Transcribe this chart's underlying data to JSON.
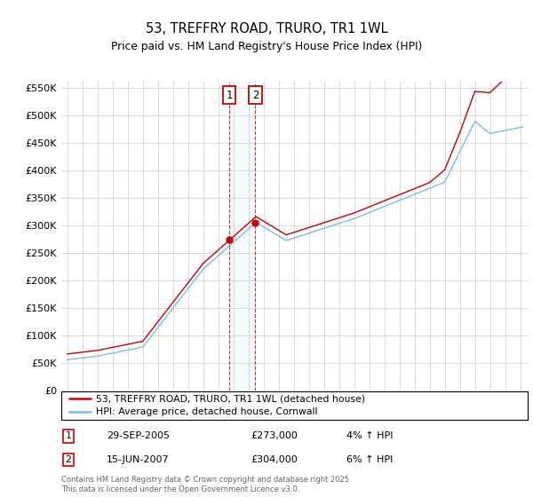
{
  "title": "53, TREFFRY ROAD, TRURO, TR1 1WL",
  "subtitle": "Price paid vs. HM Land Registry's House Price Index (HPI)",
  "legend_line1": "53, TREFFRY ROAD, TRURO, TR1 1WL (detached house)",
  "legend_line2": "HPI: Average price, detached house, Cornwall",
  "transaction1_date": "29-SEP-2005",
  "transaction1_price": "£273,000",
  "transaction1_hpi": "4% ↑ HPI",
  "transaction1_year": 2005.75,
  "transaction1_value": 273000,
  "transaction2_date": "15-JUN-2007",
  "transaction2_price": "£304,000",
  "transaction2_hpi": "6% ↑ HPI",
  "transaction2_year": 2007.46,
  "transaction2_value": 304000,
  "footer": "Contains HM Land Registry data © Crown copyright and database right 2025.\nThis data is licensed under the Open Government Licence v3.0.",
  "hpi_color": "#7abde8",
  "price_color": "#cc0000",
  "marker_box_color": "#cc0000",
  "background_color": "#ffffff",
  "grid_color": "#cccccc",
  "ylim": [
    0,
    560000
  ],
  "yticks": [
    0,
    50000,
    100000,
    150000,
    200000,
    250000,
    300000,
    350000,
    400000,
    450000,
    500000,
    550000
  ],
  "ytick_labels": [
    "£0",
    "£50K",
    "£100K",
    "£150K",
    "£200K",
    "£250K",
    "£300K",
    "£350K",
    "£400K",
    "£450K",
    "£500K",
    "£550K"
  ],
  "xlim_min": 1994.6,
  "xlim_max": 2025.5,
  "years_start": 1995,
  "years_end": 2025
}
